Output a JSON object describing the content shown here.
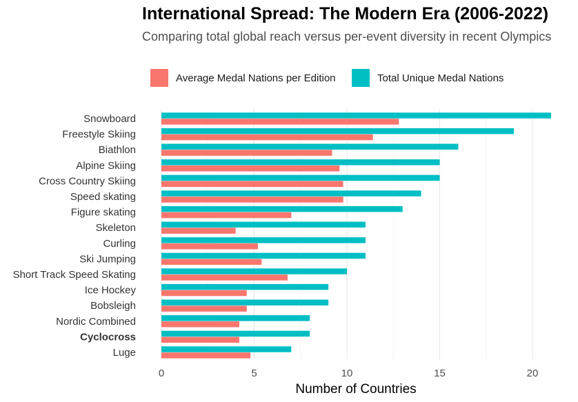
{
  "chart_data": {
    "type": "bar",
    "orientation": "horizontal",
    "title": "International Spread: The Modern Era (2006-2022)",
    "subtitle": "Comparing total global reach versus per-event diversity in recent Olympics",
    "xlabel": "Number of Countries",
    "ylabel": "",
    "xlim": [
      0,
      21
    ],
    "xticks": [
      0,
      5,
      10,
      15,
      20
    ],
    "grid": true,
    "legend_position": "top",
    "highlight_category": "Cyclocross",
    "highlight_color": "#C0202E",
    "categories": [
      "Snowboard",
      "Freestyle Skiing",
      "Biathlon",
      "Alpine Skiing",
      "Cross Country Skiing",
      "Speed skating",
      "Figure skating",
      "Skeleton",
      "Curling",
      "Ski Jumping",
      "Short Track Speed Skating",
      "Ice Hockey",
      "Bobsleigh",
      "Nordic Combined",
      "Cyclocross",
      "Luge"
    ],
    "series": [
      {
        "name": "Average Medal Nations per Edition",
        "color": "#F8766D",
        "values": [
          12.8,
          11.4,
          9.2,
          9.6,
          9.8,
          9.8,
          7.0,
          4.0,
          5.2,
          5.4,
          6.8,
          4.6,
          4.6,
          4.2,
          4.2,
          4.8
        ]
      },
      {
        "name": "Total Unique Medal Nations",
        "color": "#00BFC4",
        "values": [
          21,
          19,
          16,
          15,
          15,
          14,
          13,
          11,
          11,
          11,
          10,
          9,
          9,
          8,
          8,
          7
        ]
      }
    ]
  }
}
